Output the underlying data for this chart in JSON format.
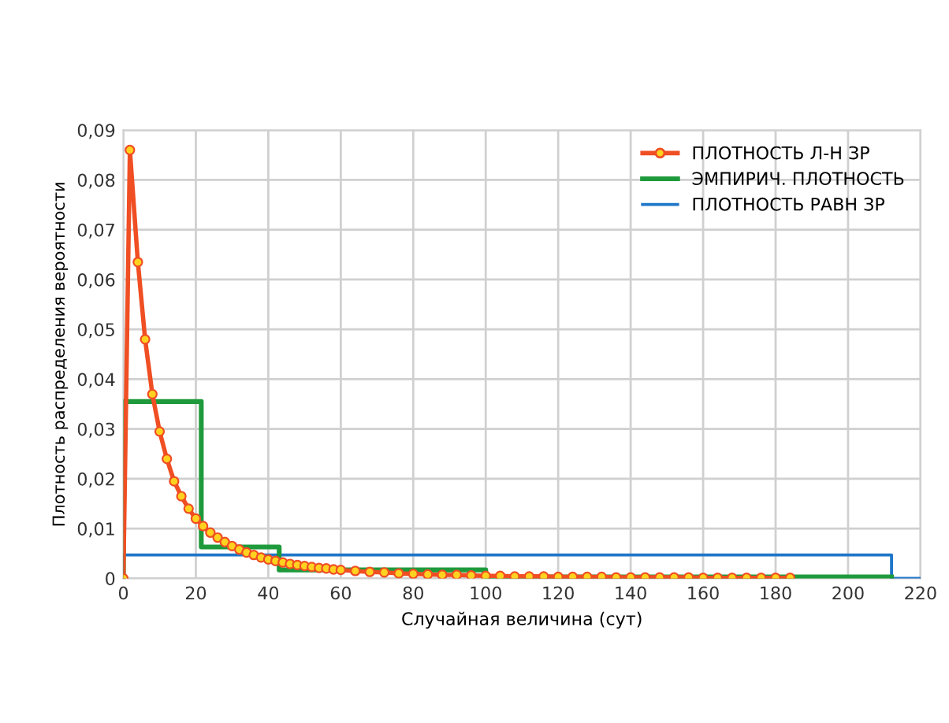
{
  "chart_data": {
    "type": "line",
    "xlabel": "Случайная величина (сут)",
    "ylabel": "Плотность распределения вероятности",
    "xlim": [
      0,
      220
    ],
    "xticks": [
      0,
      20,
      40,
      60,
      80,
      100,
      120,
      140,
      160,
      180,
      200,
      220
    ],
    "ylim": [
      0,
      0.09
    ],
    "yticks": [
      0,
      {
        "value": 0.01,
        "label": "0,01"
      },
      {
        "value": 0.02,
        "label": "0,02"
      },
      {
        "value": 0.03,
        "label": "0,03"
      },
      {
        "value": 0.04,
        "label": "0,04"
      },
      {
        "value": 0.05,
        "label": "0,05"
      },
      {
        "value": 0.06,
        "label": "0,06"
      },
      {
        "value": 0.07,
        "label": "0,07"
      },
      {
        "value": 0.08,
        "label": "0,08"
      },
      {
        "value": 0.09,
        "label": "0,09"
      }
    ],
    "grid": true,
    "legend": "top right",
    "series": [
      {
        "name": "ПЛОТНОСТЬ Л-Н ЗР",
        "color": "#f04e23",
        "marker": "circle",
        "x": [
          0,
          1.8,
          4,
          6,
          8,
          10,
          12,
          14,
          16,
          18,
          20,
          22,
          24,
          26,
          28,
          30,
          32,
          34,
          36,
          38,
          40,
          42,
          44,
          46,
          48,
          50,
          52,
          54,
          56,
          58,
          60,
          64,
          68,
          72,
          76,
          80,
          84,
          88,
          92,
          96,
          100,
          104,
          108,
          112,
          116,
          120,
          124,
          128,
          132,
          136,
          140,
          144,
          148,
          152,
          156,
          160,
          164,
          168,
          172,
          176,
          180,
          184
        ],
        "values": [
          0,
          0.086,
          0.0635,
          0.048,
          0.037,
          0.0295,
          0.024,
          0.0195,
          0.0165,
          0.014,
          0.012,
          0.0105,
          0.0092,
          0.0082,
          0.0073,
          0.0065,
          0.0058,
          0.0052,
          0.0047,
          0.0042,
          0.0038,
          0.0035,
          0.0032,
          0.0029,
          0.0027,
          0.0025,
          0.0023,
          0.0021,
          0.002,
          0.0018,
          0.0017,
          0.0015,
          0.0013,
          0.0012,
          0.001,
          0.0009,
          0.0008,
          0.0007,
          0.0007,
          0.0006,
          0.0005,
          0.0005,
          0.0004,
          0.0004,
          0.0004,
          0.0003,
          0.0003,
          0.0003,
          0.0003,
          0.0002,
          0.0002,
          0.0002,
          0.0002,
          0.0002,
          0.0002,
          0.0001,
          0.0001,
          0.0001,
          0.0001,
          0.0001,
          0.0001,
          0.0001
        ]
      },
      {
        "name": "ЭМПИРИЧ. ПЛОТНОСТЬ",
        "color": "#1e9a3c",
        "marker": "none",
        "x": [
          0,
          0,
          21.5,
          21.5,
          43,
          43,
          100,
          100,
          212
        ],
        "values": [
          0,
          0.0355,
          0.0355,
          0.0063,
          0.0063,
          0.0017,
          0.0017,
          0.0003,
          0.0003
        ]
      },
      {
        "name": "ПЛОТНОСТЬ РАВН ЗР",
        "color": "#1f77c8",
        "marker": "none",
        "x": [
          0,
          0,
          212,
          212,
          220
        ],
        "values": [
          0,
          0.0047,
          0.0047,
          0,
          0
        ]
      }
    ]
  }
}
